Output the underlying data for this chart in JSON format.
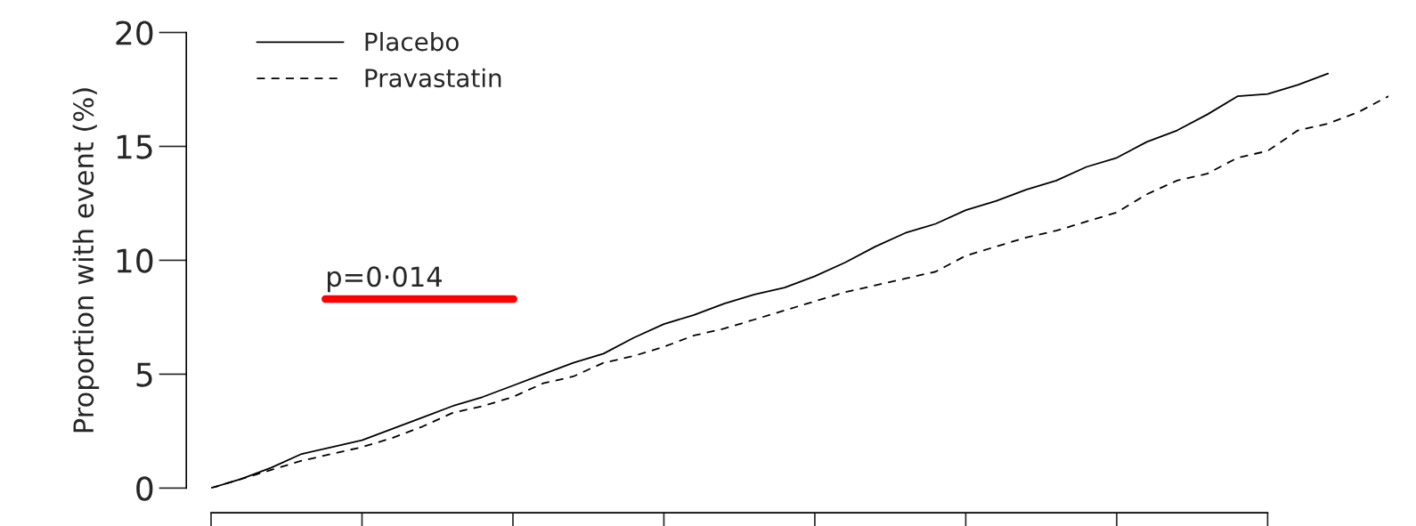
{
  "chart_data": {
    "type": "line",
    "ylabel": "Proportion with event (%)",
    "categories": [
      null,
      null,
      null,
      null,
      null,
      null,
      null,
      null,
      null,
      null,
      null,
      null,
      null,
      null,
      null,
      null,
      null,
      null,
      null,
      null,
      null,
      null,
      null,
      null,
      null,
      null,
      null,
      null,
      null,
      null,
      null,
      null,
      null,
      null,
      null,
      null,
      null,
      null,
      null,
      null
    ],
    "series": [
      {
        "name": "Placebo",
        "color": "#000000",
        "line_style": "solid",
        "values": [
          0,
          0.4,
          0.9,
          1.5,
          1.8,
          2.1,
          2.6,
          3.1,
          3.6,
          4.0,
          4.5,
          5.0,
          5.5,
          5.9,
          6.6,
          7.2,
          7.6,
          8.1,
          8.5,
          8.8,
          9.3,
          9.9,
          10.6,
          11.2,
          11.6,
          12.2,
          12.6,
          13.1,
          13.5,
          14.1,
          14.5,
          15.2,
          15.7,
          16.4,
          17.2,
          17.3,
          17.7,
          18.2,
          null,
          null
        ]
      },
      {
        "name": "Pravastatin",
        "color": "#000000",
        "line_style": "dashed",
        "values": [
          0,
          0.4,
          0.8,
          1.2,
          1.5,
          1.8,
          2.2,
          2.7,
          3.3,
          3.6,
          4.0,
          4.6,
          4.9,
          5.5,
          5.8,
          6.2,
          6.7,
          7.0,
          7.4,
          7.8,
          8.2,
          8.6,
          8.9,
          9.2,
          9.5,
          10.2,
          10.6,
          11.0,
          11.3,
          11.7,
          12.1,
          12.9,
          13.5,
          13.8,
          14.5,
          14.8,
          15.7,
          16.0,
          16.5,
          17.2
        ]
      }
    ],
    "ylim": [
      0,
      20
    ],
    "yticks": [
      0,
      5,
      10,
      15,
      20
    ],
    "grid": false,
    "legend": "top left",
    "annotations": [
      "p=0·014"
    ]
  }
}
